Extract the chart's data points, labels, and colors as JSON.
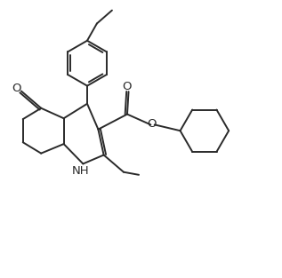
{
  "background_color": "#ffffff",
  "line_color": "#2a2a2a",
  "line_width": 1.4,
  "figsize": [
    3.17,
    3.13
  ],
  "dpi": 100,
  "xlim": [
    0,
    10
  ],
  "ylim": [
    0,
    10
  ]
}
